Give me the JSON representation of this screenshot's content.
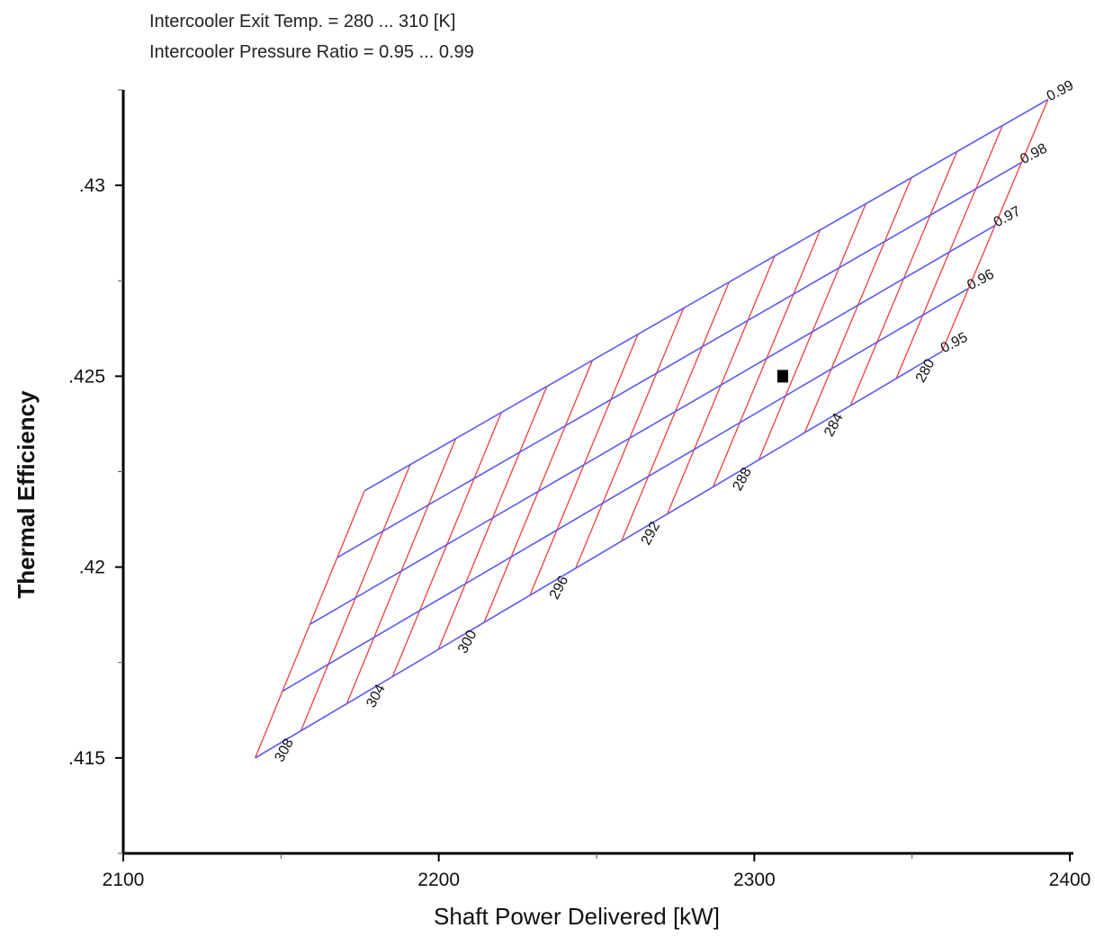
{
  "header": {
    "notes": [
      "Intercooler Exit Temp. = 280 ... 310 [K]",
      "Intercooler Pressure Ratio = 0.95 ... 0.99"
    ]
  },
  "chart_data": {
    "type": "line",
    "title": "",
    "xlabel": "Shaft Power Delivered [kW]",
    "ylabel": "Thermal Efficiency",
    "xlim": [
      2100,
      2400
    ],
    "ylim": [
      0.4125,
      0.4325
    ],
    "x_ticks": [
      {
        "value": 2100,
        "label": "2100"
      },
      {
        "value": 2200,
        "label": "2200"
      },
      {
        "value": 2300,
        "label": "2300"
      },
      {
        "value": 2400,
        "label": "2400"
      }
    ],
    "x_minor_ticks": [
      2150,
      2250,
      2350
    ],
    "y_ticks": [
      {
        "value": 0.415,
        "label": ".415"
      },
      {
        "value": 0.42,
        "label": ".42"
      },
      {
        "value": 0.425,
        "label": ".425"
      },
      {
        "value": 0.43,
        "label": ".43"
      }
    ],
    "y_minor_ticks": [
      0.4125,
      0.4175,
      0.4225,
      0.4275,
      0.4325
    ],
    "grid": false,
    "legend": "none",
    "carpet": {
      "pressure_ratio_values": [
        0.95,
        0.96,
        0.97,
        0.98,
        0.99
      ],
      "pressure_ratio_labels": [
        "0.95",
        "0.96",
        "0.97",
        "0.98",
        "0.99"
      ],
      "pressure_ratio_line_color": "#5a5af0",
      "exit_temp_line_color": "#ee4a4a",
      "corner_points": {
        "temp_310_pr_095": {
          "x": 2141.8,
          "y": 0.415
        },
        "temp_310_pr_099": {
          "x": 2176.5,
          "y": 0.422
        },
        "temp_280_pr_095": {
          "x": 2359.5,
          "y": 0.42565
        },
        "temp_280_pr_099": {
          "x": 2393.1,
          "y": 0.43225
        }
      },
      "exit_temp_labels": [
        {
          "value": 308,
          "label": "308"
        },
        {
          "value": 304,
          "label": "304"
        },
        {
          "value": 300,
          "label": "300"
        },
        {
          "value": 296,
          "label": "296"
        },
        {
          "value": 292,
          "label": "292"
        },
        {
          "value": 288,
          "label": "288"
        },
        {
          "value": 284,
          "label": "284"
        },
        {
          "value": 280,
          "label": "280"
        }
      ]
    },
    "marker": {
      "x": 2309,
      "y": 0.425,
      "shape": "square",
      "color": "#000000"
    }
  }
}
